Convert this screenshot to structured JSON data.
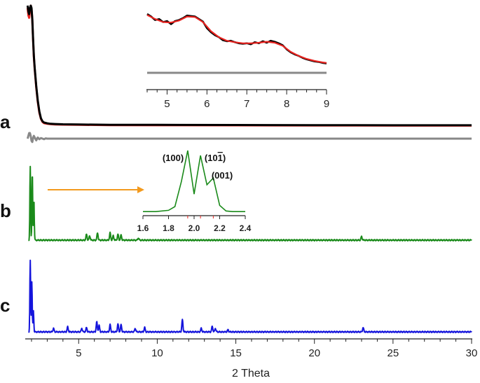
{
  "chart_data": {
    "type": "line",
    "main": {
      "xlabel": "2 Theta",
      "xlim": [
        1.6,
        30
      ],
      "xticks": [
        5,
        10,
        15,
        20,
        25,
        30
      ],
      "panels": [
        {
          "label": "a",
          "series": [
            {
              "color": "#e8231f",
              "x": [
                1.75,
                1.8,
                1.85,
                1.9,
                1.95,
                2.0,
                2.05,
                2.1,
                2.15,
                2.2,
                2.3,
                2.4,
                2.5,
                2.6,
                2.7,
                2.8,
                3.0,
                3.2,
                3.5,
                4,
                5,
                7,
                10,
                15,
                20,
                25,
                30
              ],
              "y": [
                0.98,
                0.92,
                0.9,
                0.96,
                1.0,
                0.97,
                0.88,
                0.72,
                0.58,
                0.48,
                0.33,
                0.21,
                0.12,
                0.07,
                0.045,
                0.035,
                0.03,
                0.027,
                0.025,
                0.023,
                0.021,
                0.019,
                0.018,
                0.017,
                0.016,
                0.015,
                0.015
              ]
            },
            {
              "color": "#000000",
              "x": [
                1.75,
                1.8,
                1.85,
                1.9,
                1.95,
                2.0,
                2.05,
                2.1,
                2.15,
                2.2,
                2.3,
                2.4,
                2.5,
                2.6,
                2.7,
                2.8,
                3.0,
                3.2,
                3.5,
                4,
                5,
                7,
                10,
                15,
                20,
                25,
                30
              ],
              "y": [
                1.0,
                0.95,
                0.93,
                0.98,
                1.0,
                0.98,
                0.89,
                0.73,
                0.59,
                0.49,
                0.34,
                0.22,
                0.13,
                0.075,
                0.05,
                0.04,
                0.034,
                0.03,
                0.028,
                0.026,
                0.024,
                0.022,
                0.021,
                0.02,
                0.019,
                0.018,
                0.018
              ]
            },
            {
              "color": "#888888",
              "role": "residual",
              "x": [
                1.75,
                1.8,
                1.85,
                1.9,
                1.95,
                2.0,
                2.05,
                2.1,
                2.15,
                2.2,
                2.3,
                2.4,
                2.5,
                2.6,
                2.7,
                2.8,
                2.9,
                3.0,
                3.2,
                3.5,
                4,
                5,
                10,
                15,
                20,
                25,
                30
              ],
              "y": [
                0.0,
                0.5,
                1.0,
                1.0,
                0.4,
                -0.4,
                -0.6,
                0.1,
                0.5,
                0.2,
                -0.3,
                0.2,
                -0.1,
                0.1,
                0.0,
                -0.1,
                0.05,
                0.0,
                0.0,
                0.0,
                0.0,
                0.0,
                0.0,
                0.0,
                0.0,
                0.0,
                0.0
              ]
            }
          ]
        },
        {
          "label": "b",
          "series": [
            {
              "color": "#1a8a1a",
              "peaks": [
                [
                  1.92,
                  1.0
                ],
                [
                  2.05,
                  0.93
                ],
                [
                  2.15,
                  0.56
                ],
                [
                  5.5,
                  0.08
                ],
                [
                  5.7,
                  0.06
                ],
                [
                  6.2,
                  0.1
                ],
                [
                  7.0,
                  0.1
                ],
                [
                  7.2,
                  0.06
                ],
                [
                  7.5,
                  0.08
                ],
                [
                  7.7,
                  0.07
                ],
                [
                  8.8,
                  0.03
                ],
                [
                  23.0,
                  0.05
                ]
              ]
            }
          ]
        },
        {
          "label": "c",
          "series": [
            {
              "color": "#1414dc",
              "peaks": [
                [
                  1.92,
                  1.0
                ],
                [
                  2.02,
                  0.7
                ],
                [
                  2.12,
                  0.3
                ],
                [
                  3.4,
                  0.05
                ],
                [
                  4.3,
                  0.07
                ],
                [
                  5.2,
                  0.05
                ],
                [
                  5.5,
                  0.06
                ],
                [
                  6.15,
                  0.14
                ],
                [
                  6.3,
                  0.09
                ],
                [
                  7.0,
                  0.1
                ],
                [
                  7.5,
                  0.11
                ],
                [
                  7.7,
                  0.1
                ],
                [
                  8.6,
                  0.05
                ],
                [
                  9.2,
                  0.06
                ],
                [
                  11.6,
                  0.17
                ],
                [
                  12.8,
                  0.05
                ],
                [
                  13.5,
                  0.08
                ],
                [
                  13.7,
                  0.05
                ],
                [
                  14.5,
                  0.03
                ],
                [
                  23.1,
                  0.06
                ]
              ]
            }
          ]
        }
      ]
    },
    "inset_a": {
      "xlim": [
        4.5,
        9
      ],
      "xticks": [
        5,
        6,
        7,
        8,
        9
      ],
      "series": [
        {
          "color": "#000000",
          "x": [
            4.5,
            4.6,
            4.7,
            4.8,
            4.9,
            5.0,
            5.1,
            5.2,
            5.3,
            5.4,
            5.5,
            5.6,
            5.7,
            5.8,
            5.9,
            6.0,
            6.1,
            6.2,
            6.3,
            6.4,
            6.5,
            6.6,
            6.7,
            6.8,
            6.9,
            7.0,
            7.1,
            7.2,
            7.3,
            7.4,
            7.5,
            7.6,
            7.7,
            7.8,
            7.9,
            8.0,
            8.1,
            8.2,
            8.3,
            8.4,
            8.5,
            8.6,
            8.7,
            8.8,
            8.9,
            9.0
          ],
          "y": [
            1.0,
            0.95,
            0.88,
            0.9,
            0.84,
            0.86,
            0.8,
            0.86,
            0.88,
            0.92,
            0.97,
            0.96,
            0.95,
            0.9,
            0.85,
            0.72,
            0.64,
            0.58,
            0.54,
            0.48,
            0.46,
            0.47,
            0.44,
            0.42,
            0.41,
            0.42,
            0.4,
            0.44,
            0.42,
            0.46,
            0.43,
            0.47,
            0.45,
            0.42,
            0.38,
            0.3,
            0.24,
            0.2,
            0.17,
            0.13,
            0.1,
            0.08,
            0.06,
            0.05,
            0.03,
            0.02
          ]
        },
        {
          "color": "#e8231f",
          "x": [
            4.5,
            4.7,
            4.9,
            5.1,
            5.3,
            5.5,
            5.7,
            5.9,
            6.1,
            6.3,
            6.5,
            6.7,
            6.9,
            7.1,
            7.3,
            7.5,
            7.7,
            7.9,
            8.1,
            8.3,
            8.5,
            8.7,
            8.9,
            9.0
          ],
          "y": [
            0.98,
            0.9,
            0.84,
            0.83,
            0.87,
            0.95,
            0.94,
            0.84,
            0.66,
            0.54,
            0.47,
            0.44,
            0.42,
            0.42,
            0.43,
            0.45,
            0.43,
            0.37,
            0.25,
            0.17,
            0.11,
            0.07,
            0.04,
            0.03
          ]
        },
        {
          "color": "#888888",
          "x": [
            4.5,
            9.0
          ],
          "y": [
            -0.4,
            -0.4
          ]
        }
      ]
    },
    "inset_b": {
      "xlim": [
        1.6,
        2.4
      ],
      "xticks": [
        1.6,
        1.8,
        2.0,
        2.2,
        2.4
      ],
      "peak_labels": [
        "(100)",
        "(10̅)",
        "(001)"
      ],
      "series": [
        {
          "color": "#1a8a1a",
          "x": [
            1.6,
            1.7,
            1.8,
            1.85,
            1.9,
            1.95,
            2.0,
            2.05,
            2.1,
            2.15,
            2.2,
            2.25,
            2.3,
            2.4
          ],
          "y": [
            0.02,
            0.02,
            0.04,
            0.1,
            0.5,
            1.0,
            0.3,
            0.92,
            0.45,
            0.56,
            0.12,
            0.03,
            0.02,
            0.02
          ]
        }
      ]
    },
    "arrow_color": "#f39a1e"
  }
}
